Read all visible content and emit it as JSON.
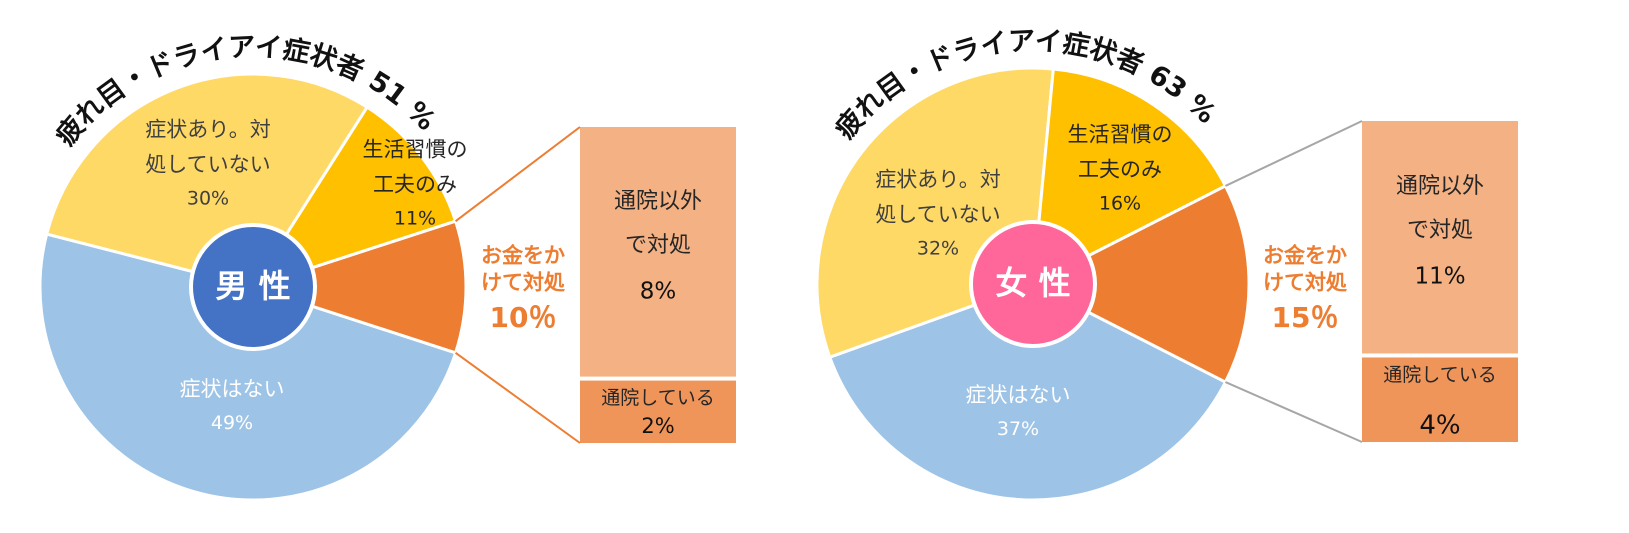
{
  "chart_data": [
    {
      "type": "pie-of-bar",
      "center_label": "男 性",
      "center_color": "#4472C4",
      "arc_title": "疲れ目・ドライアイ症状者 51 %",
      "slices": [
        {
          "label": "症状はない",
          "value": 49,
          "value_label": "49%",
          "color": "#9DC3E6",
          "text_color": "#FFFFFF"
        },
        {
          "label": "症状あり。対処していない",
          "label_lines": [
            "症状あり。対",
            "処していない"
          ],
          "value": 30,
          "value_label": "30%",
          "color": "#FFD966",
          "text_color": "#404040"
        },
        {
          "label": "生活習慣の工夫のみ",
          "label_lines": [
            "生活習慣の",
            "工夫のみ"
          ],
          "value": 11,
          "value_label": "11%",
          "color": "#FFC000",
          "text_color": "#262626"
        },
        {
          "label": "お金をかけて対処",
          "label_lines": [
            "お金をか",
            "けて対処"
          ],
          "value": 10,
          "value_label": "10％",
          "color": "#ED7D31",
          "text_color": "#ED7D31"
        }
      ],
      "breakdown": [
        {
          "label": "通院以外で対処",
          "label_lines": [
            "通院以外",
            "で対処"
          ],
          "value": 8,
          "value_label": "8%",
          "color": "#F4B183"
        },
        {
          "label": "通院している",
          "label_lines": [
            "通院している"
          ],
          "value": 2,
          "value_label": "2%",
          "color": "#F0955A"
        }
      ],
      "connector_color": "#ED7D31"
    },
    {
      "type": "pie-of-bar",
      "center_label": "女 性",
      "center_color": "#FF6699",
      "arc_title": "疲れ目・ドライアイ症状者 63 %",
      "slices": [
        {
          "label": "症状はない",
          "value": 37,
          "value_label": "37%",
          "color": "#9DC3E6",
          "text_color": "#FFFFFF"
        },
        {
          "label": "症状あり。対処していない",
          "label_lines": [
            "症状あり。対",
            "処していない"
          ],
          "value": 32,
          "value_label": "32%",
          "color": "#FFD966",
          "text_color": "#404040"
        },
        {
          "label": "生活習慣の工夫のみ",
          "label_lines": [
            "生活習慣の",
            "工夫のみ"
          ],
          "value": 16,
          "value_label": "16%",
          "color": "#FFC000",
          "text_color": "#262626"
        },
        {
          "label": "お金をかけて対処",
          "label_lines": [
            "お金をか",
            "けて対処"
          ],
          "value": 15,
          "value_label": "15％",
          "color": "#ED7D31",
          "text_color": "#ED7D31"
        }
      ],
      "breakdown": [
        {
          "label": "通院以外で対処",
          "label_lines": [
            "通院以外",
            "で対処"
          ],
          "value": 11,
          "value_label": "11%",
          "color": "#F4B183"
        },
        {
          "label": "通院している",
          "label_lines": [
            "通院している"
          ],
          "value": 4,
          "value_label": "4%",
          "color": "#F0955A"
        }
      ],
      "connector_color": "#A6A6A6"
    }
  ]
}
